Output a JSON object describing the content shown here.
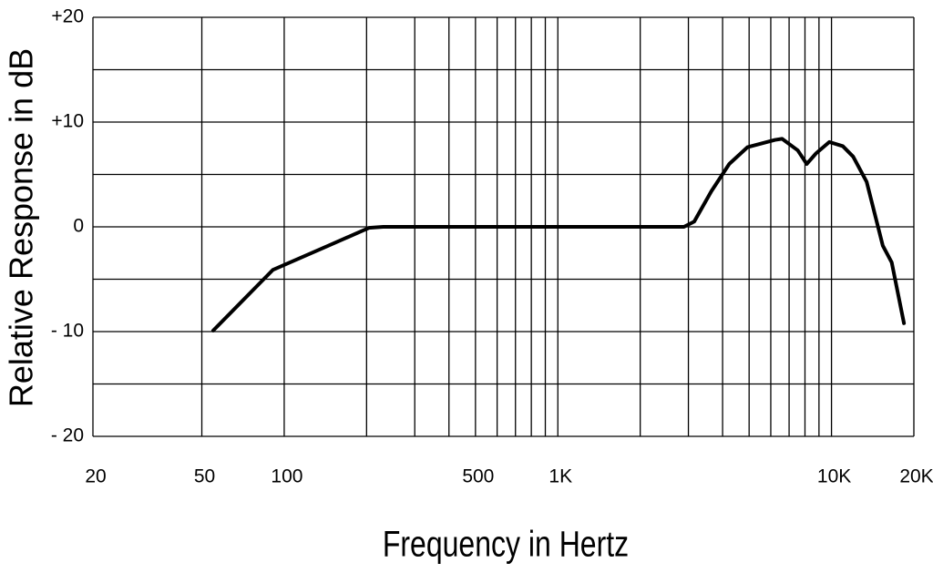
{
  "chart_data": {
    "type": "line",
    "x_label": "Frequency in Hertz",
    "y_label": "Relative Response in dB",
    "xscale": "log",
    "xlim": [
      20,
      20000
    ],
    "ylim": [
      -20,
      20
    ],
    "xticks": [
      20,
      50,
      100,
      500,
      {
        "value": 1000,
        "label": "1K"
      },
      {
        "value": 10000,
        "label": "10K"
      },
      {
        "value": 20000,
        "label": "20K"
      }
    ],
    "yticks": [
      {
        "value": 20,
        "label": "+20"
      },
      {
        "value": 10,
        "label": "+10"
      },
      0,
      {
        "value": -10,
        "label": "- 10"
      },
      {
        "value": -20,
        "label": "- 20"
      }
    ],
    "x_gridlines": [
      20,
      50,
      100,
      200,
      300,
      400,
      500,
      600,
      700,
      800,
      900,
      1000,
      2000,
      3000,
      4000,
      5000,
      6000,
      7000,
      8000,
      9000,
      10000,
      20000
    ],
    "y_gridlines": [
      -20,
      -15,
      -10,
      -5,
      0,
      5,
      10,
      15,
      20
    ],
    "grid": true,
    "series": [
      {
        "color": "#000000",
        "x": [
          55,
          91,
          145,
          204,
          230,
          2890,
          3150,
          3640,
          4230,
          4930,
          6220,
          6600,
          7530,
          8120,
          8770,
          9820,
          11000,
          12000,
          13440,
          15400,
          16600,
          18400
        ],
        "values": [
          -9.9,
          -4.1,
          -1.8,
          -0.1,
          0,
          0,
          0.5,
          3.4,
          6,
          7.6,
          8.3,
          8.4,
          7.3,
          6,
          7,
          8.1,
          7.7,
          6.7,
          4.3,
          -1.8,
          -3.4,
          -9.2
        ]
      }
    ]
  }
}
